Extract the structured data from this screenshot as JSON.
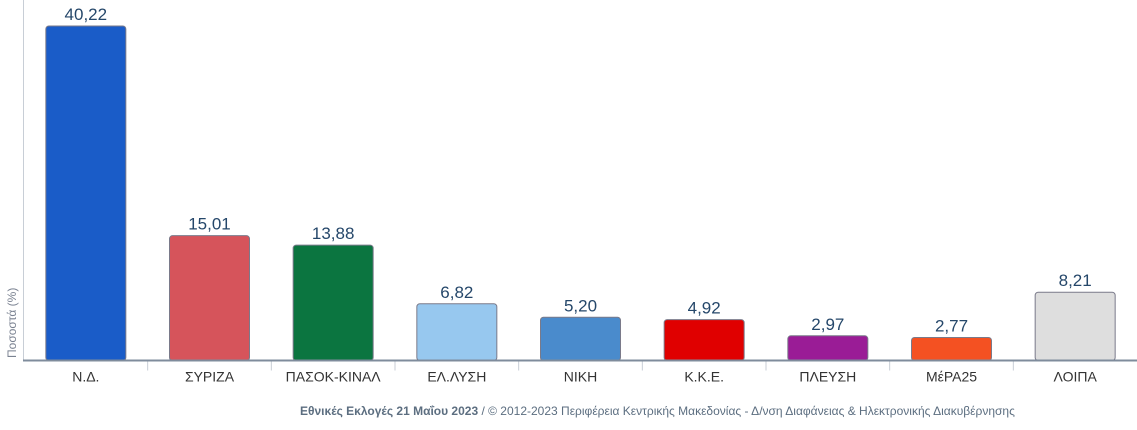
{
  "chart_data": {
    "type": "bar",
    "categories": [
      "Ν.Δ.",
      "ΣΥΡΙΖΑ",
      "ΠΑΣΟΚ-ΚΙΝΑΛ",
      "ΕΛ.ΛΥΣΗ",
      "ΝΙΚΗ",
      "Κ.Κ.Ε.",
      "ΠΛΕΥΣΗ",
      "ΜέΡΑ25",
      "ΛΟΙΠΑ"
    ],
    "values": [
      40.22,
      15.01,
      13.88,
      6.82,
      5.2,
      4.92,
      2.97,
      2.77,
      8.21
    ],
    "data_labels": [
      "40,22",
      "15,01",
      "13,88",
      "6,82",
      "5,20",
      "4,92",
      "2,97",
      "2,77",
      "8,21"
    ],
    "colors": [
      "#1a5cc8",
      "#d6545b",
      "#0b7540",
      "#97c8ef",
      "#4a8bcc",
      "#e00000",
      "#9a1c96",
      "#f45122",
      "#dedede"
    ],
    "ylabel": "Ποσοστά (%)",
    "ylim": [
      0,
      40.22
    ],
    "grid": false,
    "legend": "none"
  },
  "footer": {
    "title": "Εθνικές Εκλογές 21 Μαΐου 2023",
    "credit": " / © 2012-2023 Περιφέρεια Κεντρικής Μακεδονίας - Δ/νση Διαφάνειας & Ηλεκτρονικής Διακυβέρνησης"
  }
}
